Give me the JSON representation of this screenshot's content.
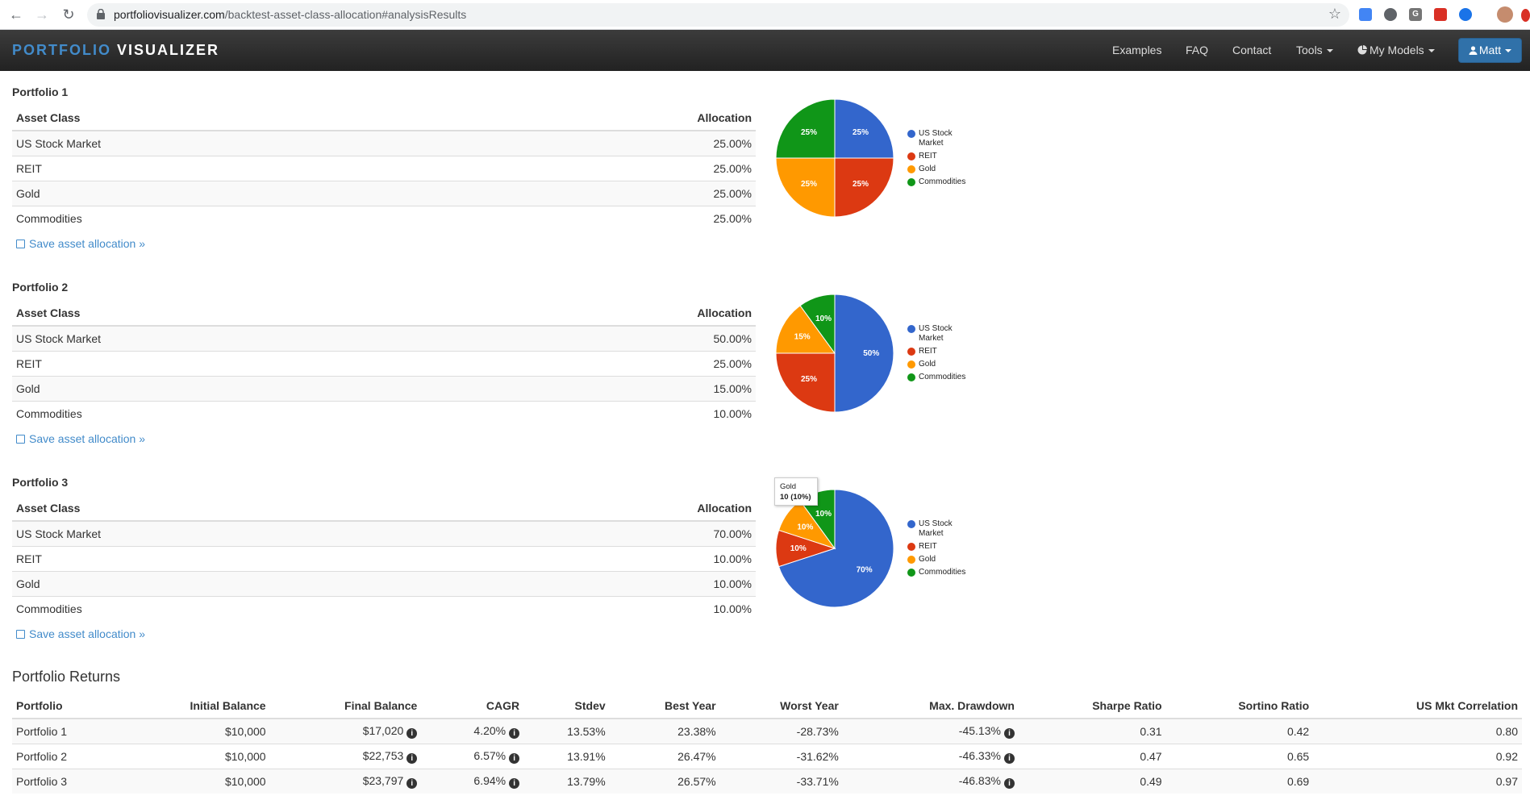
{
  "browser": {
    "url_host": "portfoliovisualizer.com",
    "url_path": "/backtest-asset-class-allocation#analysisResults"
  },
  "navbar": {
    "brand_part1": "PORTFOLIO",
    "brand_part2": "VISUALIZER",
    "links": [
      "Examples",
      "FAQ",
      "Contact",
      "Tools",
      "My Models"
    ],
    "user": "Matt"
  },
  "table_headers": {
    "asset_class": "Asset Class",
    "allocation": "Allocation"
  },
  "save_label": "Save asset allocation »",
  "portfolios": [
    {
      "title": "Portfolio 1",
      "rows": [
        {
          "asset": "US Stock Market",
          "alloc": "25.00%"
        },
        {
          "asset": "REIT",
          "alloc": "25.00%"
        },
        {
          "asset": "Gold",
          "alloc": "25.00%"
        },
        {
          "asset": "Commodities",
          "alloc": "25.00%"
        }
      ]
    },
    {
      "title": "Portfolio 2",
      "rows": [
        {
          "asset": "US Stock Market",
          "alloc": "50.00%"
        },
        {
          "asset": "REIT",
          "alloc": "25.00%"
        },
        {
          "asset": "Gold",
          "alloc": "15.00%"
        },
        {
          "asset": "Commodities",
          "alloc": "10.00%"
        }
      ]
    },
    {
      "title": "Portfolio 3",
      "rows": [
        {
          "asset": "US Stock Market",
          "alloc": "70.00%"
        },
        {
          "asset": "REIT",
          "alloc": "10.00%"
        },
        {
          "asset": "Gold",
          "alloc": "10.00%"
        },
        {
          "asset": "Commodities",
          "alloc": "10.00%"
        }
      ]
    }
  ],
  "legend": [
    "US Stock Market",
    "REIT",
    "Gold",
    "Commodities"
  ],
  "colors": {
    "us_stock": "#3366cc",
    "reit": "#dc3912",
    "gold": "#ff9900",
    "commodities": "#109618"
  },
  "tooltip": {
    "label": "Gold",
    "value": "10 (10%)"
  },
  "chart_data": [
    {
      "type": "pie",
      "categories": [
        "US Stock Market",
        "REIT",
        "Gold",
        "Commodities"
      ],
      "values": [
        25,
        25,
        25,
        25
      ],
      "labels": [
        "25%",
        "25%",
        "25%",
        "25%"
      ]
    },
    {
      "type": "pie",
      "categories": [
        "US Stock Market",
        "REIT",
        "Gold",
        "Commodities"
      ],
      "values": [
        50,
        25,
        15,
        10
      ],
      "labels": [
        "50%",
        "25%",
        "15%",
        "10%"
      ]
    },
    {
      "type": "pie",
      "categories": [
        "US Stock Market",
        "REIT",
        "Gold",
        "Commodities"
      ],
      "values": [
        70,
        10,
        10,
        10
      ],
      "labels": [
        "70%",
        "10%",
        "10%",
        "10%"
      ]
    }
  ],
  "returns": {
    "title": "Portfolio Returns",
    "headers": [
      "Portfolio",
      "Initial Balance",
      "Final Balance",
      "CAGR",
      "Stdev",
      "Best Year",
      "Worst Year",
      "Max. Drawdown",
      "Sharpe Ratio",
      "Sortino Ratio",
      "US Mkt Correlation"
    ],
    "rows": [
      [
        "Portfolio 1",
        "$10,000",
        "$17,020",
        "4.20%",
        "13.53%",
        "23.38%",
        "-28.73%",
        "-45.13%",
        "0.31",
        "0.42",
        "0.80"
      ],
      [
        "Portfolio 2",
        "$10,000",
        "$22,753",
        "6.57%",
        "13.91%",
        "26.47%",
        "-31.62%",
        "-46.33%",
        "0.47",
        "0.65",
        "0.92"
      ],
      [
        "Portfolio 3",
        "$10,000",
        "$23,797",
        "6.94%",
        "13.79%",
        "26.57%",
        "-33.71%",
        "-46.83%",
        "0.49",
        "0.69",
        "0.97"
      ]
    ]
  }
}
